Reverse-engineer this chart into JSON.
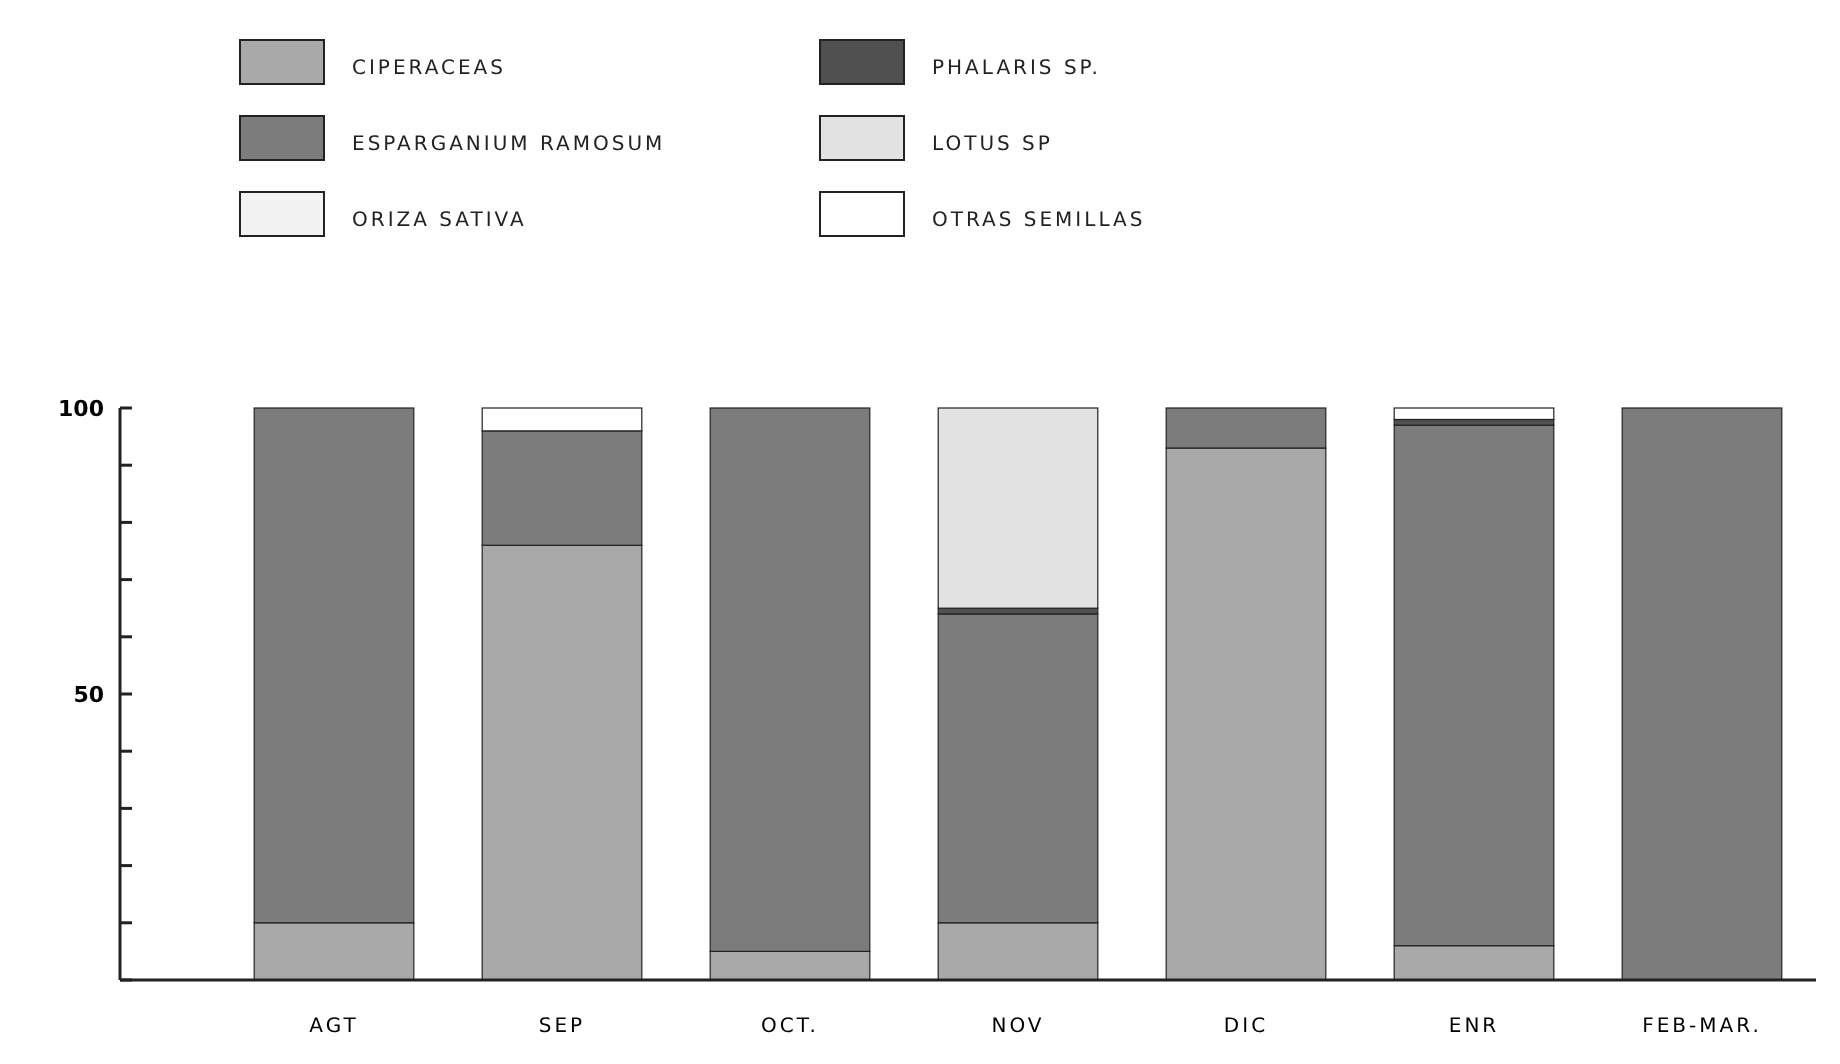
{
  "chart_data": {
    "type": "bar",
    "stacked": true,
    "legend": "top",
    "grid": false,
    "categories": [
      "AGT",
      "SEP",
      "OCT.",
      "NOV",
      "DIC",
      "ENR",
      "FEB-MAR."
    ],
    "series": [
      {
        "name": "CIPERACEAS",
        "color": "#a9a9a9",
        "values": [
          10,
          76,
          5,
          10,
          93,
          6,
          0
        ]
      },
      {
        "name": "ESPARGANIUM RAMOSUM",
        "color": "#7c7c7c",
        "values": [
          90,
          20,
          95,
          54,
          7,
          91,
          100
        ]
      },
      {
        "name": "ORIZA SATIVA",
        "color": "#f2f2f2",
        "values": [
          0,
          0,
          0,
          0,
          0,
          0,
          0
        ]
      },
      {
        "name": "PHALARIS SP.",
        "color": "#505050",
        "values": [
          0,
          0,
          0,
          1,
          0,
          1,
          0
        ]
      },
      {
        "name": "LOTUS SP",
        "color": "#e2e2e2",
        "values": [
          0,
          0,
          0,
          35,
          0,
          0,
          0
        ]
      },
      {
        "name": "OTRAS SEMILLAS",
        "color": "#ffffff",
        "values": [
          0,
          4,
          0,
          0,
          0,
          2,
          0
        ]
      }
    ],
    "ylim": [
      0,
      100
    ],
    "yticks": [
      {
        "value": 0,
        "label": null
      },
      {
        "value": 10,
        "label": null
      },
      {
        "value": 20,
        "label": null
      },
      {
        "value": 30,
        "label": null
      },
      {
        "value": 40,
        "label": null
      },
      50,
      {
        "value": 60,
        "label": null
      },
      {
        "value": 70,
        "label": null
      },
      {
        "value": 80,
        "label": null
      },
      {
        "value": 90,
        "label": null
      },
      100
    ]
  }
}
